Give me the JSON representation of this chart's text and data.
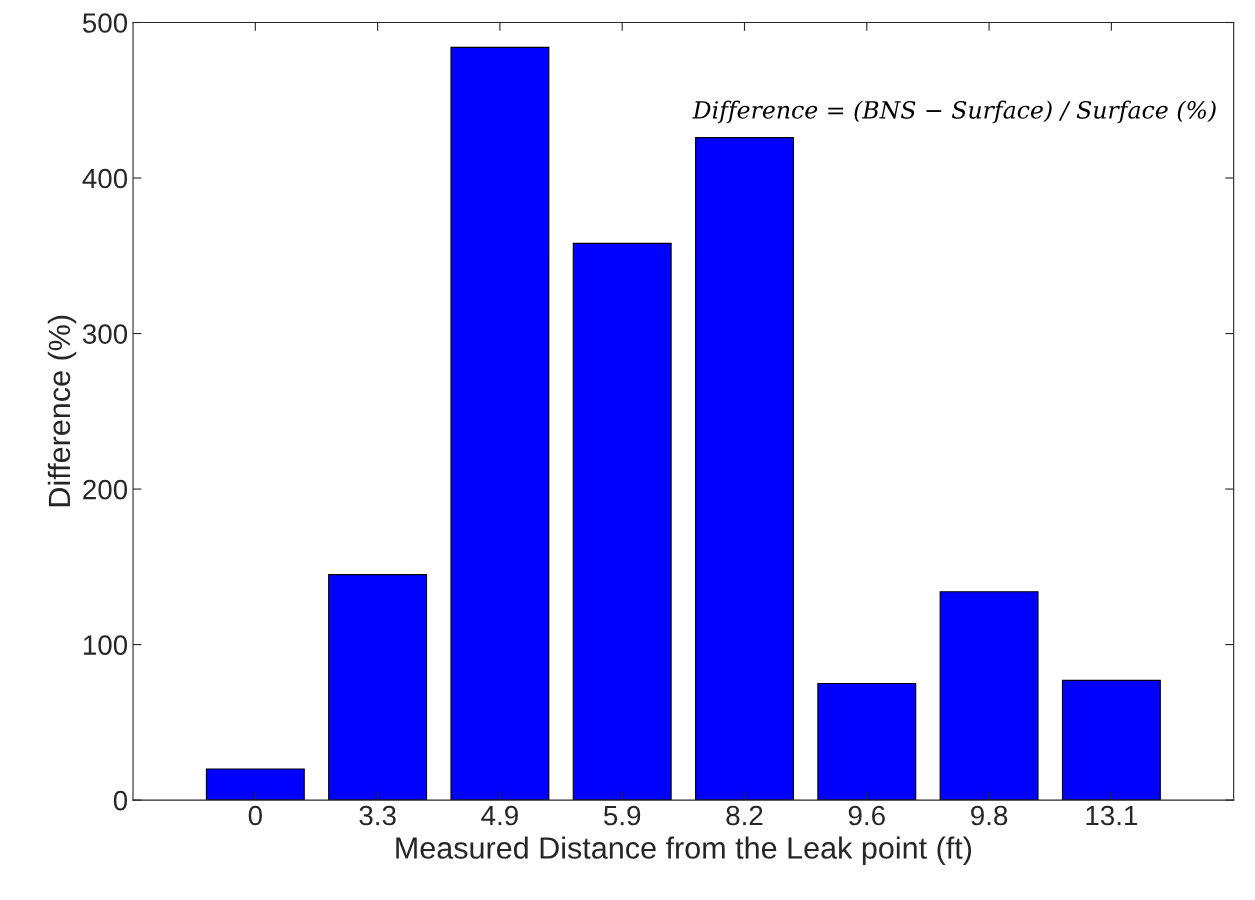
{
  "chart_data": {
    "type": "bar",
    "xlabel": "Measured Distance from the Leak point (ft)",
    "ylabel": "Difference (%)",
    "categories": [
      "0",
      "3.3",
      "4.9",
      "5.9",
      "8.2",
      "9.6",
      "9.8",
      "13.1"
    ],
    "values": [
      20,
      145,
      484,
      358,
      426,
      75,
      134,
      77
    ],
    "color": "#0000ff",
    "ylim": [
      0,
      500
    ],
    "yticks": [
      0,
      100,
      200,
      300,
      400,
      500
    ],
    "grid": false,
    "annotations": [
      "Difference = (BNS − Surface) / Surface (%)"
    ]
  }
}
